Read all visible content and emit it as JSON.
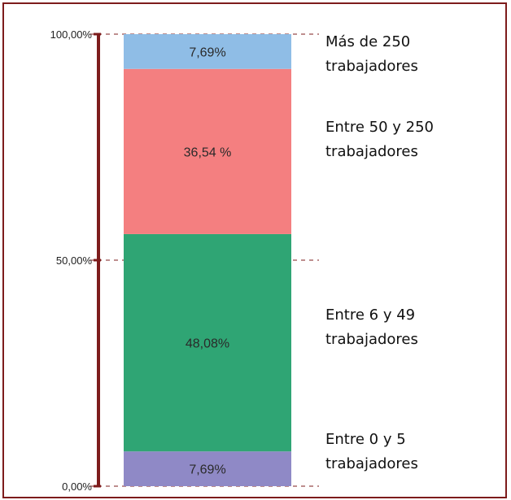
{
  "chart_data": {
    "type": "bar",
    "stacked": true,
    "orientation": "vertical",
    "ylim": [
      0,
      100
    ],
    "y_ticks": [
      {
        "value": 0,
        "label": "0,00%"
      },
      {
        "value": 50,
        "label": "50,00%"
      },
      {
        "value": 100,
        "label": "100,00%"
      }
    ],
    "segments": [
      {
        "value": 7.69,
        "label": "7,69%",
        "name_lines": [
          "Entre 0 y 5",
          "trabajadores"
        ],
        "color": "#8f89c6"
      },
      {
        "value": 48.08,
        "label": "48,08%",
        "name_lines": [
          "Entre 6 y 49",
          "trabajadores"
        ],
        "color": "#2fa574"
      },
      {
        "value": 36.54,
        "label": "36,54 %",
        "name_lines": [
          "Entre 50 y 250",
          "trabajadores"
        ],
        "color": "#f47f80"
      },
      {
        "value": 7.69,
        "label": "7,69%",
        "name_lines": [
          "Más de 250",
          "trabajadores"
        ],
        "color": "#8fbde6"
      }
    ],
    "axis_color": "#7d1c1c",
    "frame_color": "#7d1c1c",
    "gridlines": "dashed"
  }
}
